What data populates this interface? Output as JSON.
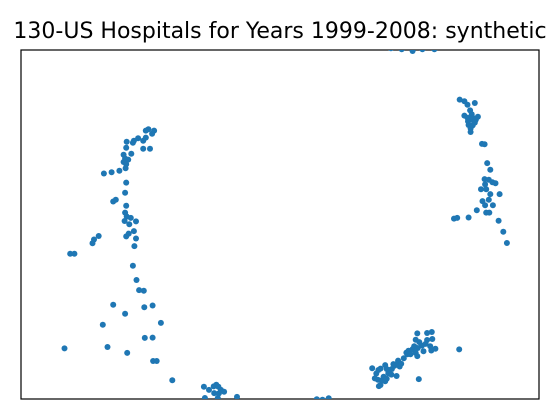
{
  "chart_data": {
    "type": "scatter",
    "title": "130-US Hospitals for Years 1999-2008: synthetic",
    "xlabel": "",
    "ylabel": "",
    "xlim": [
      0,
      1
    ],
    "ylim": [
      0,
      1
    ],
    "grid": false,
    "axes_ticks": false,
    "marker_color": "#1f77b4",
    "series": [
      {
        "points": [
          [
            0.714,
            1.005
          ],
          [
            0.735,
            1.002
          ],
          [
            0.756,
            0.997
          ],
          [
            0.775,
            1.002
          ],
          [
            0.798,
            1.002
          ],
          [
            0.847,
            0.858
          ],
          [
            0.856,
            0.853
          ],
          [
            0.862,
            0.843
          ],
          [
            0.876,
            0.848
          ],
          [
            0.867,
            0.827
          ],
          [
            0.856,
            0.812
          ],
          [
            0.862,
            0.806
          ],
          [
            0.87,
            0.816
          ],
          [
            0.872,
            0.806
          ],
          [
            0.868,
            0.8
          ],
          [
            0.863,
            0.796
          ],
          [
            0.864,
            0.785
          ],
          [
            0.868,
            0.775
          ],
          [
            0.872,
            0.784
          ],
          [
            0.878,
            0.8
          ],
          [
            0.882,
            0.809
          ],
          [
            0.876,
            0.792
          ],
          [
            0.868,
            0.765
          ],
          [
            0.89,
            0.731
          ],
          [
            0.895,
            0.73
          ],
          [
            0.9,
            0.676
          ],
          [
            0.906,
            0.657
          ],
          [
            0.895,
            0.63
          ],
          [
            0.903,
            0.628
          ],
          [
            0.91,
            0.621
          ],
          [
            0.916,
            0.618
          ],
          [
            0.896,
            0.615
          ],
          [
            0.888,
            0.601
          ],
          [
            0.898,
            0.601
          ],
          [
            0.906,
            0.587
          ],
          [
            0.924,
            0.587
          ],
          [
            0.903,
            0.571
          ],
          [
            0.891,
            0.567
          ],
          [
            0.896,
            0.555
          ],
          [
            0.911,
            0.555
          ],
          [
            0.88,
            0.541
          ],
          [
            0.898,
            0.534
          ],
          [
            0.904,
            0.534
          ],
          [
            0.836,
            0.517
          ],
          [
            0.842,
            0.519
          ],
          [
            0.864,
            0.52
          ],
          [
            0.922,
            0.511
          ],
          [
            0.931,
            0.479
          ],
          [
            0.938,
            0.447
          ],
          [
            0.246,
            0.773
          ],
          [
            0.257,
            0.769
          ],
          [
            0.253,
            0.76
          ],
          [
            0.241,
            0.769
          ],
          [
            0.241,
            0.749
          ],
          [
            0.226,
            0.747
          ],
          [
            0.236,
            0.74
          ],
          [
            0.218,
            0.74
          ],
          [
            0.216,
            0.734
          ],
          [
            0.204,
            0.737
          ],
          [
            0.203,
            0.72
          ],
          [
            0.236,
            0.717
          ],
          [
            0.249,
            0.717
          ],
          [
            0.213,
            0.703
          ],
          [
            0.198,
            0.7
          ],
          [
            0.201,
            0.689
          ],
          [
            0.207,
            0.686
          ],
          [
            0.198,
            0.679
          ],
          [
            0.203,
            0.673
          ],
          [
            0.19,
            0.654
          ],
          [
            0.202,
            0.661
          ],
          [
            0.175,
            0.65
          ],
          [
            0.16,
            0.646
          ],
          [
            0.203,
            0.62
          ],
          [
            0.183,
            0.571
          ],
          [
            0.178,
            0.566
          ],
          [
            0.201,
            0.591
          ],
          [
            0.203,
            0.554
          ],
          [
            0.201,
            0.534
          ],
          [
            0.204,
            0.523
          ],
          [
            0.212,
            0.519
          ],
          [
            0.222,
            0.509
          ],
          [
            0.2,
            0.51
          ],
          [
            0.209,
            0.501
          ],
          [
            0.218,
            0.481
          ],
          [
            0.208,
            0.474
          ],
          [
            0.203,
            0.466
          ],
          [
            0.222,
            0.46
          ],
          [
            0.15,
            0.467
          ],
          [
            0.141,
            0.457
          ],
          [
            0.138,
            0.446
          ],
          [
            0.095,
            0.416
          ],
          [
            0.103,
            0.416
          ],
          [
            0.219,
            0.438
          ],
          [
            0.216,
            0.382
          ],
          [
            0.223,
            0.341
          ],
          [
            0.228,
            0.312
          ],
          [
            0.237,
            0.31
          ],
          [
            0.178,
            0.27
          ],
          [
            0.238,
            0.263
          ],
          [
            0.254,
            0.268
          ],
          [
            0.201,
            0.244
          ],
          [
            0.158,
            0.213
          ],
          [
            0.27,
            0.218
          ],
          [
            0.254,
            0.176
          ],
          [
            0.239,
            0.175
          ],
          [
            0.167,
            0.149
          ],
          [
            0.205,
            0.132
          ],
          [
            0.084,
            0.145
          ],
          [
            0.255,
            0.109
          ],
          [
            0.262,
            0.109
          ],
          [
            0.292,
            0.054
          ],
          [
            0.353,
            0.035
          ],
          [
            0.363,
            0.026
          ],
          [
            0.372,
            0.036
          ],
          [
            0.377,
            0.041
          ],
          [
            0.381,
            0.035
          ],
          [
            0.386,
            0.026
          ],
          [
            0.373,
            0.017
          ],
          [
            0.382,
            0.016
          ],
          [
            0.392,
            0.021
          ],
          [
            0.355,
            0.003
          ],
          [
            0.38,
            0.003
          ],
          [
            0.417,
            0.006
          ],
          [
            0.571,
            -0.001
          ],
          [
            0.582,
            -0.002
          ],
          [
            0.594,
            0.002
          ],
          [
            0.683,
            0.059
          ],
          [
            0.686,
            0.073
          ],
          [
            0.69,
            0.083
          ],
          [
            0.689,
            0.055
          ],
          [
            0.691,
            0.037
          ],
          [
            0.694,
            0.04
          ],
          [
            0.697,
            0.054
          ],
          [
            0.7,
            0.064
          ],
          [
            0.703,
            0.051
          ],
          [
            0.706,
            0.058
          ],
          [
            0.709,
            0.074
          ],
          [
            0.712,
            0.083
          ],
          [
            0.715,
            0.07
          ],
          [
            0.716,
            0.086
          ],
          [
            0.719,
            0.1
          ],
          [
            0.721,
            0.095
          ],
          [
            0.726,
            0.101
          ],
          [
            0.728,
            0.11
          ],
          [
            0.731,
            0.093
          ],
          [
            0.734,
            0.101
          ],
          [
            0.725,
            0.066
          ],
          [
            0.706,
            0.086
          ],
          [
            0.694,
            0.087
          ],
          [
            0.678,
            0.088
          ],
          [
            0.703,
            0.097
          ],
          [
            0.739,
            0.117
          ],
          [
            0.744,
            0.133
          ],
          [
            0.746,
            0.128
          ],
          [
            0.748,
            0.138
          ],
          [
            0.752,
            0.128
          ],
          [
            0.756,
            0.143
          ],
          [
            0.759,
            0.151
          ],
          [
            0.762,
            0.132
          ],
          [
            0.765,
            0.123
          ],
          [
            0.766,
            0.146
          ],
          [
            0.762,
            0.17
          ],
          [
            0.769,
            0.163
          ],
          [
            0.774,
            0.153
          ],
          [
            0.777,
            0.137
          ],
          [
            0.781,
            0.158
          ],
          [
            0.784,
            0.169
          ],
          [
            0.79,
            0.151
          ],
          [
            0.792,
            0.139
          ],
          [
            0.794,
            0.172
          ],
          [
            0.765,
            0.188
          ],
          [
            0.784,
            0.189
          ],
          [
            0.793,
            0.192
          ],
          [
            0.8,
            0.144
          ],
          [
            0.768,
            0.057
          ],
          [
            0.846,
            0.142
          ]
        ]
      }
    ]
  }
}
